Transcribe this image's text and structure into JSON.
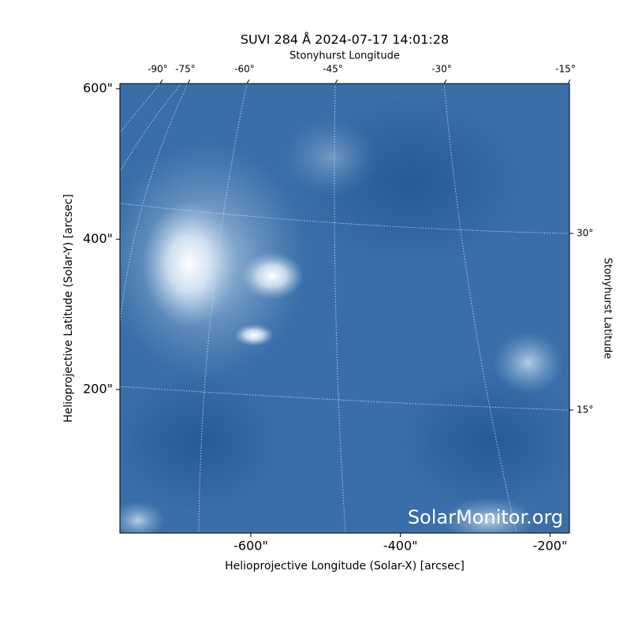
{
  "chart_data": {
    "type": "image",
    "title": "SUVI 284 Å 2024-07-17 14:01:28",
    "x_label": "Helioprojective Longitude (Solar-X) [arcsec]",
    "y_label": "Helioprojective Latitude (Solar-Y) [arcsec]",
    "top_label": "Stonyhurst Longitude",
    "right_label": "Stonyhurst Latitude",
    "xlim": [
      -775,
      -174
    ],
    "ylim": [
      9,
      607
    ],
    "xticks": [
      {
        "value": -600,
        "label": "-600\""
      },
      {
        "value": -400,
        "label": "-400\""
      },
      {
        "value": -200,
        "label": "-200\""
      }
    ],
    "yticks": [
      {
        "value": 200,
        "label": "200\""
      },
      {
        "value": 400,
        "label": "400\""
      },
      {
        "value": 600,
        "label": "600\""
      }
    ],
    "lon_ticks": [
      {
        "value": -90,
        "label": "-90°"
      },
      {
        "value": -75,
        "label": "-75°"
      },
      {
        "value": -60,
        "label": "-60°"
      },
      {
        "value": -45,
        "label": "-45°"
      },
      {
        "value": -30,
        "label": "-30°"
      },
      {
        "value": -15,
        "label": "-15°"
      }
    ],
    "lat_ticks": [
      {
        "value": 15,
        "label": "15°"
      },
      {
        "value": 30,
        "label": "30°"
      }
    ],
    "color": "#3a6ea8",
    "watermark": "SolarMonitor.org"
  }
}
